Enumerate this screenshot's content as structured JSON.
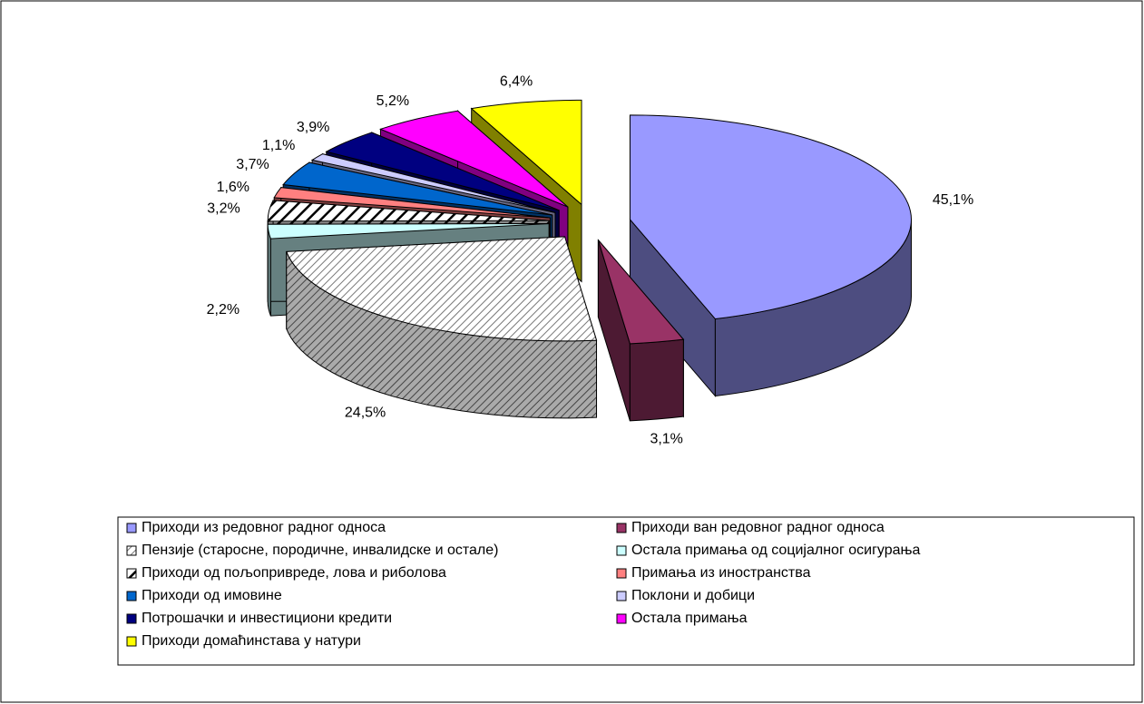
{
  "chart_data": {
    "type": "pie3d",
    "categories": [
      "Приходи из редовног радног односа",
      "Приходи ван редовног радног односа",
      "Пензије (старосне, породичне, инвалидске и остале)",
      "Остала примања од социјалног осигурања",
      "Приходи од пољопривреде, лова и риболова",
      "Примања из иностранства",
      "Приходи од имовине",
      "Поклони и добици",
      "Потрошачки и инвестициони кредити",
      "Остала примања",
      "Приходи домаћинстава у натури"
    ],
    "values": [
      45.1,
      3.1,
      24.5,
      2.2,
      3.2,
      1.6,
      3.7,
      1.1,
      3.9,
      5.2,
      6.4
    ],
    "value_labels": [
      "45,1%",
      "3,1%",
      "24,5%",
      "2,2%",
      "3,2%",
      "1,6%",
      "3,7%",
      "1,1%",
      "3,9%",
      "5,2%",
      "6,4%"
    ],
    "colors": [
      "#9999ff",
      "#993366",
      "#ffffff",
      "#ccffff",
      "#ffffff",
      "#ff8080",
      "#0066cc",
      "#ccccff",
      "#000080",
      "#ff00ff",
      "#ffff00"
    ],
    "patterns": [
      null,
      null,
      "dense-hatch",
      null,
      "diagonal-hatch",
      null,
      null,
      null,
      null,
      null,
      null
    ],
    "legend": "bottom"
  }
}
